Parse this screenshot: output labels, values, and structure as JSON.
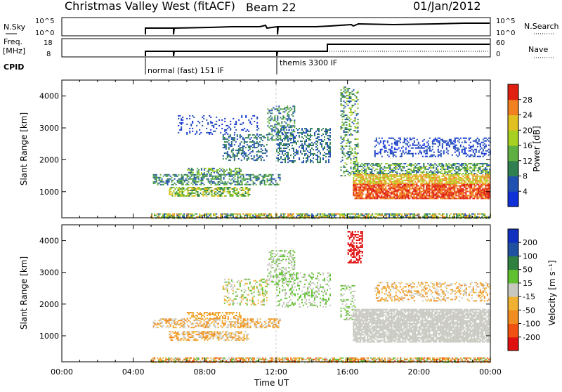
{
  "header": {
    "title": "Christmas Valley West (fitACF)",
    "beam": "Beam 22",
    "date": "01/Jan/2012"
  },
  "param_panels": {
    "nsky_label": "N.Sky",
    "nsky_ticks": [
      "10^5",
      "10^0"
    ],
    "nsearch_label": "N.Search",
    "nsearch_ticks": [
      "10^5",
      "10^0"
    ],
    "freq_label": "Freq.",
    "freq_unit": "[MHz]",
    "freq_ticks": [
      "18",
      "8"
    ],
    "nave_label": "Nave",
    "nave_ticks": [
      "60",
      "0"
    ],
    "cpid_label": "CPID",
    "cpid_entries": [
      {
        "start_hour": 5.0,
        "label": "normal (fast) 151 IF"
      },
      {
        "start_hour": 12.0,
        "label": "themis 3300 IF"
      }
    ]
  },
  "chart_data": [
    {
      "type": "heatmap",
      "name": "power-panel",
      "ylabel": "Slant Range [km]",
      "xlim": [
        0,
        24
      ],
      "ylim": [
        180,
        4500
      ],
      "y_ticks": [
        1000,
        2000,
        3000,
        4000
      ],
      "y_tick_labels": [
        "1000",
        "2000",
        "3000",
        "4000"
      ],
      "colorbar": {
        "label": "Power [dB]",
        "tick_labels": [
          "28",
          "24",
          "20",
          "16",
          "12",
          "8",
          "4"
        ],
        "levels": [
          0,
          4,
          8,
          12,
          16,
          20,
          24,
          28,
          30
        ],
        "colors": [
          "#1030d8",
          "#2050b0",
          "#2f7f50",
          "#5fb040",
          "#a8d020",
          "#e0c020",
          "#f08020",
          "#e02010"
        ]
      },
      "scatter_regions": [
        {
          "t": [
            5.0,
            24.0
          ],
          "r": [
            180,
            320
          ],
          "level": [
            1,
            6
          ],
          "density": 0.7
        },
        {
          "t": [
            5.1,
            12.2
          ],
          "r": [
            1200,
            1550
          ],
          "level": [
            1,
            3
          ],
          "density": 0.55
        },
        {
          "t": [
            6.0,
            10.5
          ],
          "r": [
            850,
            1150
          ],
          "level": [
            2,
            5
          ],
          "density": 0.6
        },
        {
          "t": [
            7.0,
            10.0
          ],
          "r": [
            1550,
            1750
          ],
          "level": [
            1,
            4
          ],
          "density": 0.5
        },
        {
          "t": [
            9.0,
            11.5
          ],
          "r": [
            2000,
            2800
          ],
          "level": [
            1,
            2
          ],
          "density": 0.35
        },
        {
          "t": [
            11.5,
            13.0
          ],
          "r": [
            2600,
            3700
          ],
          "level": [
            1,
            3
          ],
          "density": 0.4
        },
        {
          "t": [
            12.0,
            15.0
          ],
          "r": [
            1900,
            3000
          ],
          "level": [
            1,
            2
          ],
          "density": 0.35
        },
        {
          "t": [
            15.6,
            16.6
          ],
          "r": [
            1500,
            4300
          ],
          "level": [
            1,
            4
          ],
          "density": 0.35
        },
        {
          "t": [
            16.3,
            24.0
          ],
          "r": [
            800,
            1250
          ],
          "level": [
            6,
            7
          ],
          "density": 0.85
        },
        {
          "t": [
            16.3,
            24.0
          ],
          "r": [
            1250,
            1550
          ],
          "level": [
            4,
            6
          ],
          "density": 0.8
        },
        {
          "t": [
            16.3,
            24.0
          ],
          "r": [
            1550,
            1900
          ],
          "level": [
            1,
            4
          ],
          "density": 0.55
        },
        {
          "t": [
            17.5,
            24.0
          ],
          "r": [
            2100,
            2700
          ],
          "level": [
            0,
            1
          ],
          "density": 0.35
        },
        {
          "t": [
            6.5,
            11.0
          ],
          "r": [
            2800,
            3400
          ],
          "level": [
            0,
            1
          ],
          "density": 0.15
        }
      ]
    },
    {
      "type": "heatmap",
      "name": "velocity-panel",
      "ylabel": "Slant Range [km]",
      "xlabel": "Time UT",
      "xlim": [
        0,
        24
      ],
      "x_ticks": [
        0,
        4,
        8,
        12,
        16,
        20,
        24
      ],
      "x_tick_labels": [
        "00:00",
        "04:00",
        "08:00",
        "12:00",
        "16:00",
        "20:00",
        "00:00"
      ],
      "ylim": [
        180,
        4500
      ],
      "y_ticks": [
        1000,
        2000,
        3000,
        4000
      ],
      "y_tick_labels": [
        "1000",
        "2000",
        "3000",
        "4000"
      ],
      "colorbar": {
        "label": "Velocity [m s⁻¹]",
        "tick_labels": [
          "200",
          "100",
          "50",
          "15",
          "-15",
          "-50",
          "-100",
          "-200"
        ],
        "levels": [
          -250,
          -200,
          -100,
          -50,
          -15,
          15,
          50,
          100,
          200,
          250
        ],
        "colors": [
          "#e01010",
          "#f05010",
          "#f08c20",
          "#f0b030",
          "#c8c8c0",
          "#60c030",
          "#308040",
          "#2050a0",
          "#1030c0"
        ]
      },
      "scatter_regions": [
        {
          "t": [
            5.0,
            24.0
          ],
          "r": [
            180,
            320
          ],
          "level": [
            1,
            5
          ],
          "density": 0.7
        },
        {
          "t": [
            5.1,
            12.2
          ],
          "r": [
            1250,
            1550
          ],
          "level": [
            2,
            4
          ],
          "density": 0.5
        },
        {
          "t": [
            6.0,
            10.5
          ],
          "r": [
            850,
            1150
          ],
          "level": [
            2,
            4
          ],
          "density": 0.55
        },
        {
          "t": [
            7.0,
            10.0
          ],
          "r": [
            1550,
            1750
          ],
          "level": [
            2,
            3
          ],
          "density": 0.5
        },
        {
          "t": [
            9.0,
            11.5
          ],
          "r": [
            2000,
            2800
          ],
          "level": [
            3,
            5
          ],
          "density": 0.3
        },
        {
          "t": [
            11.5,
            13.0
          ],
          "r": [
            2600,
            3700
          ],
          "level": [
            4,
            5
          ],
          "density": 0.35
        },
        {
          "t": [
            12.0,
            15.0
          ],
          "r": [
            1900,
            3000
          ],
          "level": [
            4,
            5
          ],
          "density": 0.3
        },
        {
          "t": [
            16.0,
            16.8
          ],
          "r": [
            3300,
            4300
          ],
          "level": [
            0,
            0
          ],
          "density": 0.5
        },
        {
          "t": [
            15.6,
            16.4
          ],
          "r": [
            1500,
            2600
          ],
          "level": [
            4,
            5
          ],
          "density": 0.3
        },
        {
          "t": [
            16.3,
            24.0
          ],
          "r": [
            800,
            1850
          ],
          "level": [
            4,
            4
          ],
          "density": 0.85
        },
        {
          "t": [
            17.5,
            24.0
          ],
          "r": [
            2100,
            2700
          ],
          "level": [
            2,
            4
          ],
          "density": 0.3
        }
      ]
    }
  ]
}
